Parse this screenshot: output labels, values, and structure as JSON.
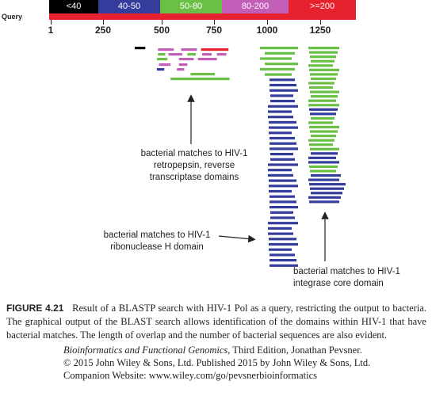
{
  "legend": {
    "query_label": "Query",
    "bins": [
      {
        "label": "<40",
        "color": "#000000"
      },
      {
        "label": "40-50",
        "color": "#343c9c"
      },
      {
        "label": "50-80",
        "color": "#6abf45"
      },
      {
        "label": "80-200",
        "color": "#c25db8"
      },
      {
        "label": ">=200",
        "color": "#e8212e"
      }
    ]
  },
  "axis": {
    "ticks": [
      "1",
      "250",
      "500",
      "750",
      "1000",
      "1250"
    ],
    "tick_values": [
      1,
      250,
      500,
      750,
      1000,
      1250
    ],
    "min": 1,
    "max": 1450
  },
  "chart_data": {
    "type": "blast_alignment_overview",
    "query_length": 1450,
    "hits": [
      {
        "start": 400,
        "end": 450,
        "bin": "<40"
      },
      {
        "start": 510,
        "end": 585,
        "bin": "80-200"
      },
      {
        "start": 620,
        "end": 695,
        "bin": "80-200"
      },
      {
        "start": 715,
        "end": 845,
        "bin": ">=200"
      },
      {
        "start": 510,
        "end": 545,
        "bin": "50-80"
      },
      {
        "start": 560,
        "end": 625,
        "bin": "80-200"
      },
      {
        "start": 650,
        "end": 690,
        "bin": "50-80"
      },
      {
        "start": 720,
        "end": 765,
        "bin": "80-200"
      },
      {
        "start": 790,
        "end": 835,
        "bin": "80-200"
      },
      {
        "start": 505,
        "end": 555,
        "bin": "50-80"
      },
      {
        "start": 610,
        "end": 680,
        "bin": "80-200"
      },
      {
        "start": 700,
        "end": 790,
        "bin": "80-200"
      },
      {
        "start": 515,
        "end": 570,
        "bin": "80-200"
      },
      {
        "start": 610,
        "end": 650,
        "bin": "80-200"
      },
      {
        "start": 505,
        "end": 540,
        "bin": "40-50"
      },
      {
        "start": 600,
        "end": 635,
        "bin": "80-200"
      },
      {
        "start": 665,
        "end": 780,
        "bin": "50-80"
      },
      {
        "start": 570,
        "end": 850,
        "bin": "50-80"
      }
    ],
    "rnase_h_column": {
      "count": 42,
      "bins_top": [
        "50-80",
        "50-80",
        "50-80",
        "50-80",
        "50-80",
        "50-80"
      ]
    },
    "integrase_column": {
      "count": 36
    }
  },
  "annotations": {
    "rt": [
      "bacterial matches to HIV-1",
      "retropepsin,  reverse",
      "transcriptase domains"
    ],
    "rnase": [
      "bacterial matches to HIV-1",
      "ribonuclease H domain"
    ],
    "integrase": [
      "bacterial matches to HIV-1",
      "integrase core domain"
    ]
  },
  "caption": {
    "label": "FIGURE 4.21",
    "text": "Result of a BLASTP search with HIV-1 Pol as a query, restricting the output to bacteria. The graphical output of the BLAST search allows identification of the domains within HIV-1 that have bacterial matches. The length of overlap and the number of bacterial sequences are also evident."
  },
  "credits": {
    "book_title": "Bioinformatics and Functional Genomics",
    "book_rest": ", Third Edition, Jonathan Pevsner.",
    "copyright": "© 2015 John Wiley & Sons, Ltd. Published 2015 by John Wiley & Sons, Ltd.",
    "website": "Companion Website: www.wiley.com/go/pevsnerbioinformatics"
  }
}
